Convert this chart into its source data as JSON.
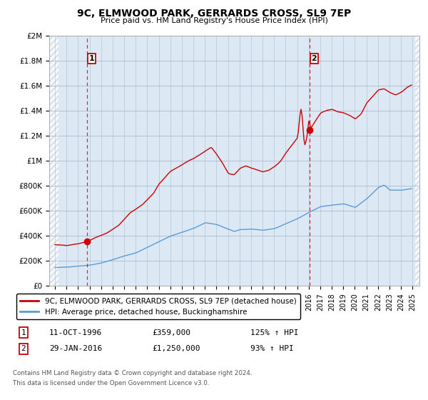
{
  "title": "9C, ELMWOOD PARK, GERRARDS CROSS, SL9 7EP",
  "subtitle": "Price paid vs. HM Land Registry's House Price Index (HPI)",
  "legend_line1": "9C, ELMWOOD PARK, GERRARDS CROSS, SL9 7EP (detached house)",
  "legend_line2": "HPI: Average price, detached house, Buckinghamshire",
  "annotation1_date": "11-OCT-1996",
  "annotation1_price": "£359,000",
  "annotation1_hpi": "125% ↑ HPI",
  "annotation2_date": "29-JAN-2016",
  "annotation2_price": "£1,250,000",
  "annotation2_hpi": "93% ↑ HPI",
  "footnote1": "Contains HM Land Registry data © Crown copyright and database right 2024.",
  "footnote2": "This data is licensed under the Open Government Licence v3.0.",
  "red_color": "#cc0000",
  "blue_color": "#5b9bd5",
  "plot_bg": "#dce9f5",
  "fig_bg": "#ffffff",
  "hatch_color": "#c0c8d0",
  "grid_color": "#aabbcc",
  "ylim": [
    0,
    2000000
  ],
  "yticks": [
    0,
    200000,
    400000,
    600000,
    800000,
    1000000,
    1200000,
    1400000,
    1600000,
    1800000,
    2000000
  ],
  "ytick_labels": [
    "£0",
    "£200K",
    "£400K",
    "£600K",
    "£800K",
    "£1M",
    "£1.2M",
    "£1.4M",
    "£1.6M",
    "£1.8M",
    "£2M"
  ],
  "sale1_x": 1996.79,
  "sale1_y": 359000,
  "sale2_x": 2016.08,
  "sale2_y": 1250000,
  "xmin": 1994.0,
  "xmax": 2025.5
}
